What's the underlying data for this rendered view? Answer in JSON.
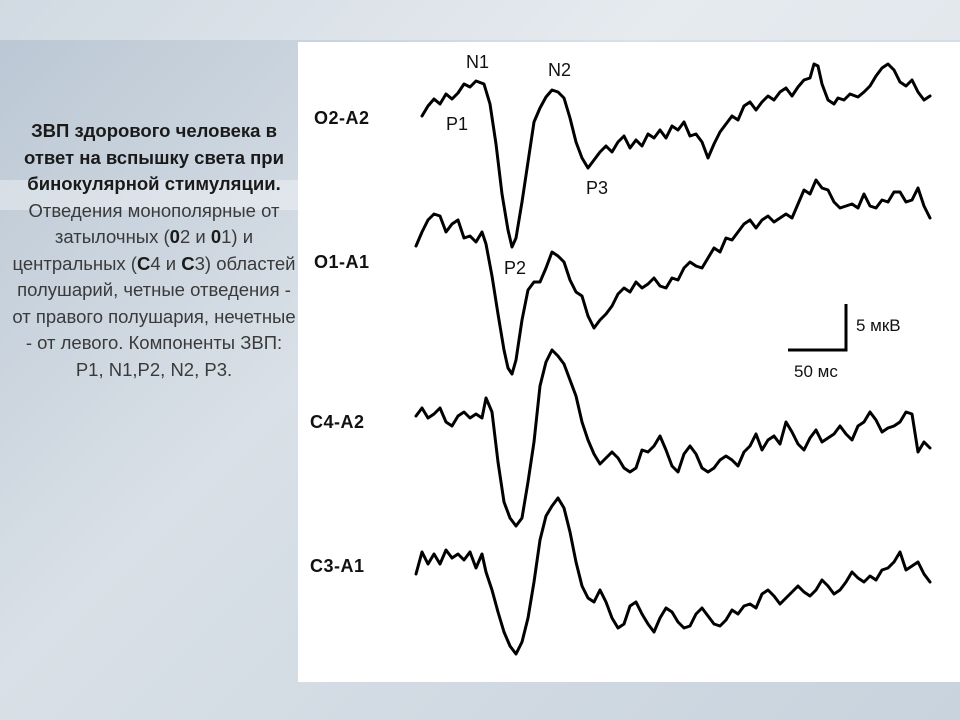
{
  "caption": {
    "bold": "ЗВП здорового человека в ответ на вспышку света при бинокулярной стимуляции.",
    "t1": " Отведения монополярные от затылочных (",
    "b1": "0",
    "t2": "2 и ",
    "b2": "0",
    "t3": "1) и центральных (",
    "b3": "С",
    "t4": "4 и ",
    "b4": "С",
    "t5": "3) областей полушарий, четные отведения - от правого полушария, нечетные - от левого. Компоненты ЗВП: P1, N1,P2, N2, P3."
  },
  "leads": [
    "O2-A2",
    "O1-A1",
    "C4-A2",
    "C3-A1"
  ],
  "components": {
    "n1": "N1",
    "n2": "N2",
    "p1": "P1",
    "p2": "P2",
    "p3": "P3"
  },
  "scale": {
    "amplitude": "5 мкВ",
    "time": "50 мс"
  },
  "colors": {
    "trace": "#000000",
    "background": "#ffffff",
    "slide": "#c8d3dd"
  }
}
